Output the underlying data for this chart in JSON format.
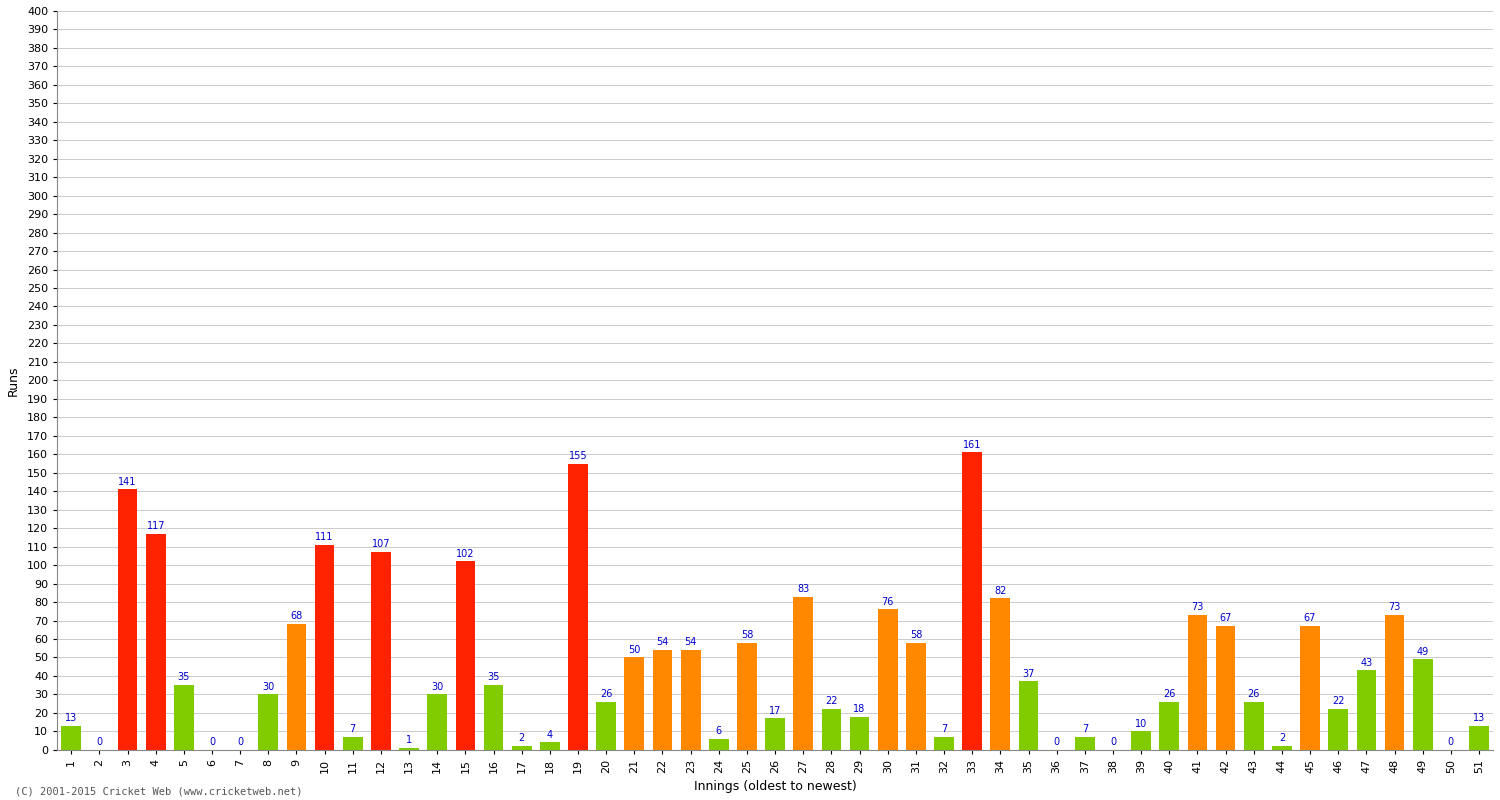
{
  "xlabel": "Innings (oldest to newest)",
  "ylabel": "Runs",
  "ylim": [
    0,
    400
  ],
  "yticks": [
    0,
    10,
    20,
    30,
    40,
    50,
    60,
    70,
    80,
    90,
    100,
    110,
    120,
    130,
    140,
    150,
    160,
    170,
    180,
    190,
    200,
    210,
    220,
    230,
    240,
    250,
    260,
    270,
    280,
    290,
    300,
    310,
    320,
    330,
    340,
    350,
    360,
    370,
    380,
    390,
    400
  ],
  "bars": [
    {
      "inning": 1,
      "value": 13,
      "color": "#80cc00"
    },
    {
      "inning": 2,
      "value": 0,
      "color": "#80cc00"
    },
    {
      "inning": 3,
      "value": 141,
      "color": "#ff2200"
    },
    {
      "inning": 4,
      "value": 117,
      "color": "#ff2200"
    },
    {
      "inning": 5,
      "value": 35,
      "color": "#80cc00"
    },
    {
      "inning": 6,
      "value": 0,
      "color": "#80cc00"
    },
    {
      "inning": 7,
      "value": 0,
      "color": "#80cc00"
    },
    {
      "inning": 8,
      "value": 30,
      "color": "#80cc00"
    },
    {
      "inning": 9,
      "value": 68,
      "color": "#ff8800"
    },
    {
      "inning": 10,
      "value": 111,
      "color": "#ff2200"
    },
    {
      "inning": 11,
      "value": 7,
      "color": "#80cc00"
    },
    {
      "inning": 12,
      "value": 107,
      "color": "#ff2200"
    },
    {
      "inning": 13,
      "value": 1,
      "color": "#80cc00"
    },
    {
      "inning": 14,
      "value": 30,
      "color": "#80cc00"
    },
    {
      "inning": 15,
      "value": 102,
      "color": "#ff2200"
    },
    {
      "inning": 16,
      "value": 35,
      "color": "#80cc00"
    },
    {
      "inning": 17,
      "value": 2,
      "color": "#80cc00"
    },
    {
      "inning": 18,
      "value": 4,
      "color": "#80cc00"
    },
    {
      "inning": 19,
      "value": 155,
      "color": "#ff2200"
    },
    {
      "inning": 20,
      "value": 26,
      "color": "#80cc00"
    },
    {
      "inning": 21,
      "value": 50,
      "color": "#ff8800"
    },
    {
      "inning": 22,
      "value": 54,
      "color": "#ff8800"
    },
    {
      "inning": 23,
      "value": 54,
      "color": "#ff8800"
    },
    {
      "inning": 24,
      "value": 6,
      "color": "#80cc00"
    },
    {
      "inning": 25,
      "value": 58,
      "color": "#ff8800"
    },
    {
      "inning": 26,
      "value": 17,
      "color": "#80cc00"
    },
    {
      "inning": 27,
      "value": 83,
      "color": "#ff8800"
    },
    {
      "inning": 28,
      "value": 22,
      "color": "#80cc00"
    },
    {
      "inning": 29,
      "value": 18,
      "color": "#80cc00"
    },
    {
      "inning": 30,
      "value": 76,
      "color": "#ff8800"
    },
    {
      "inning": 31,
      "value": 58,
      "color": "#ff8800"
    },
    {
      "inning": 32,
      "value": 7,
      "color": "#80cc00"
    },
    {
      "inning": 33,
      "value": 161,
      "color": "#ff2200"
    },
    {
      "inning": 34,
      "value": 82,
      "color": "#ff8800"
    },
    {
      "inning": 35,
      "value": 37,
      "color": "#80cc00"
    },
    {
      "inning": 36,
      "value": 0,
      "color": "#80cc00"
    },
    {
      "inning": 37,
      "value": 7,
      "color": "#80cc00"
    },
    {
      "inning": 38,
      "value": 0,
      "color": "#80cc00"
    },
    {
      "inning": 39,
      "value": 10,
      "color": "#80cc00"
    },
    {
      "inning": 40,
      "value": 26,
      "color": "#80cc00"
    },
    {
      "inning": 41,
      "value": 73,
      "color": "#ff8800"
    },
    {
      "inning": 42,
      "value": 67,
      "color": "#ff8800"
    },
    {
      "inning": 43,
      "value": 26,
      "color": "#80cc00"
    },
    {
      "inning": 44,
      "value": 2,
      "color": "#80cc00"
    },
    {
      "inning": 45,
      "value": 67,
      "color": "#ff8800"
    },
    {
      "inning": 46,
      "value": 22,
      "color": "#80cc00"
    },
    {
      "inning": 47,
      "value": 43,
      "color": "#80cc00"
    },
    {
      "inning": 48,
      "value": 73,
      "color": "#ff8800"
    },
    {
      "inning": 49,
      "value": 49,
      "color": "#80cc00"
    },
    {
      "inning": 50,
      "value": 0,
      "color": "#80cc00"
    },
    {
      "inning": 51,
      "value": 13,
      "color": "#80cc00"
    }
  ],
  "color_red": "#ff2200",
  "color_orange": "#ff8800",
  "color_green": "#80cc00",
  "background_color": "#ffffff",
  "grid_color": "#cccccc",
  "label_color": "#0000cc",
  "footer": "(C) 2001-2015 Cricket Web (www.cricketweb.net)"
}
